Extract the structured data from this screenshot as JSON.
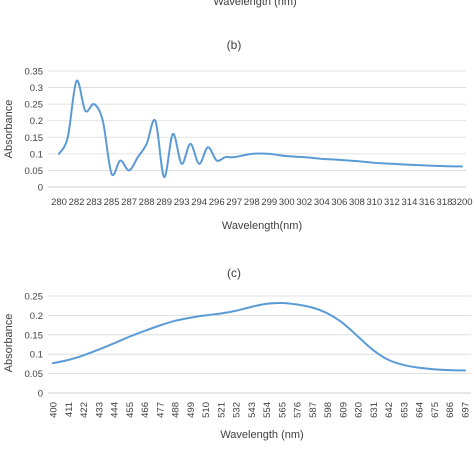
{
  "top_cut_xlabel": "Wavelength (nm)",
  "chart_data": [
    {
      "type": "line",
      "panel": "(b)",
      "xlabel": "Wavelength(nm)",
      "ylabel": "Absorbance",
      "ylim": [
        0,
        0.35
      ],
      "y_ticks": [
        "0",
        "0.05",
        "0.1",
        "0.15",
        "0.2",
        "0.25",
        "0.3",
        "0.35"
      ],
      "x_ticks": [
        "280",
        "282",
        "283",
        "285",
        "287",
        "288",
        "289",
        "293",
        "294",
        "296",
        "297",
        "298",
        "299",
        "300",
        "302",
        "304",
        "306",
        "308",
        "310",
        "312",
        "314",
        "316",
        "318",
        "3200"
      ],
      "line_color": "#5b9bd5",
      "points": [
        [
          0,
          0.1
        ],
        [
          0.5,
          0.15
        ],
        [
          1,
          0.32
        ],
        [
          1.5,
          0.23
        ],
        [
          2,
          0.25
        ],
        [
          2.5,
          0.2
        ],
        [
          3,
          0.04
        ],
        [
          3.5,
          0.08
        ],
        [
          4,
          0.05
        ],
        [
          4.5,
          0.09
        ],
        [
          5,
          0.13
        ],
        [
          5.5,
          0.2
        ],
        [
          6,
          0.03
        ],
        [
          6.5,
          0.16
        ],
        [
          7,
          0.07
        ],
        [
          7.5,
          0.13
        ],
        [
          8,
          0.07
        ],
        [
          8.5,
          0.12
        ],
        [
          9,
          0.08
        ],
        [
          9.5,
          0.09
        ],
        [
          10,
          0.09
        ],
        [
          11,
          0.1
        ],
        [
          12,
          0.1
        ],
        [
          13,
          0.093
        ],
        [
          14,
          0.09
        ],
        [
          15,
          0.085
        ],
        [
          16,
          0.082
        ],
        [
          17,
          0.078
        ],
        [
          18,
          0.073
        ],
        [
          19,
          0.07
        ],
        [
          20,
          0.067
        ],
        [
          21,
          0.065
        ],
        [
          22,
          0.063
        ],
        [
          23,
          0.062
        ]
      ]
    },
    {
      "type": "line",
      "panel": "(c)",
      "xlabel": "Wavelength (nm)",
      "ylabel": "Absorbance",
      "ylim": [
        0,
        0.25
      ],
      "y_ticks": [
        "0",
        "0.05",
        "0.1",
        "0.15",
        "0.2",
        "0.25"
      ],
      "x_ticks": [
        "400",
        "411",
        "422",
        "433",
        "444",
        "455",
        "466",
        "477",
        "488",
        "499",
        "510",
        "521",
        "532",
        "543",
        "554",
        "565",
        "576",
        "587",
        "598",
        "609",
        "620",
        "631",
        "642",
        "653",
        "664",
        "675",
        "686",
        "697"
      ],
      "line_color": "#5b9bd5",
      "points": [
        [
          400,
          0.077
        ],
        [
          411,
          0.085
        ],
        [
          422,
          0.097
        ],
        [
          433,
          0.112
        ],
        [
          444,
          0.128
        ],
        [
          455,
          0.145
        ],
        [
          466,
          0.16
        ],
        [
          477,
          0.174
        ],
        [
          488,
          0.186
        ],
        [
          499,
          0.194
        ],
        [
          510,
          0.2
        ],
        [
          521,
          0.205
        ],
        [
          532,
          0.212
        ],
        [
          543,
          0.222
        ],
        [
          554,
          0.23
        ],
        [
          565,
          0.232
        ],
        [
          576,
          0.228
        ],
        [
          587,
          0.22
        ],
        [
          598,
          0.205
        ],
        [
          609,
          0.18
        ],
        [
          620,
          0.145
        ],
        [
          631,
          0.11
        ],
        [
          642,
          0.085
        ],
        [
          653,
          0.072
        ],
        [
          664,
          0.065
        ],
        [
          675,
          0.061
        ],
        [
          686,
          0.059
        ],
        [
          697,
          0.058
        ]
      ]
    }
  ]
}
